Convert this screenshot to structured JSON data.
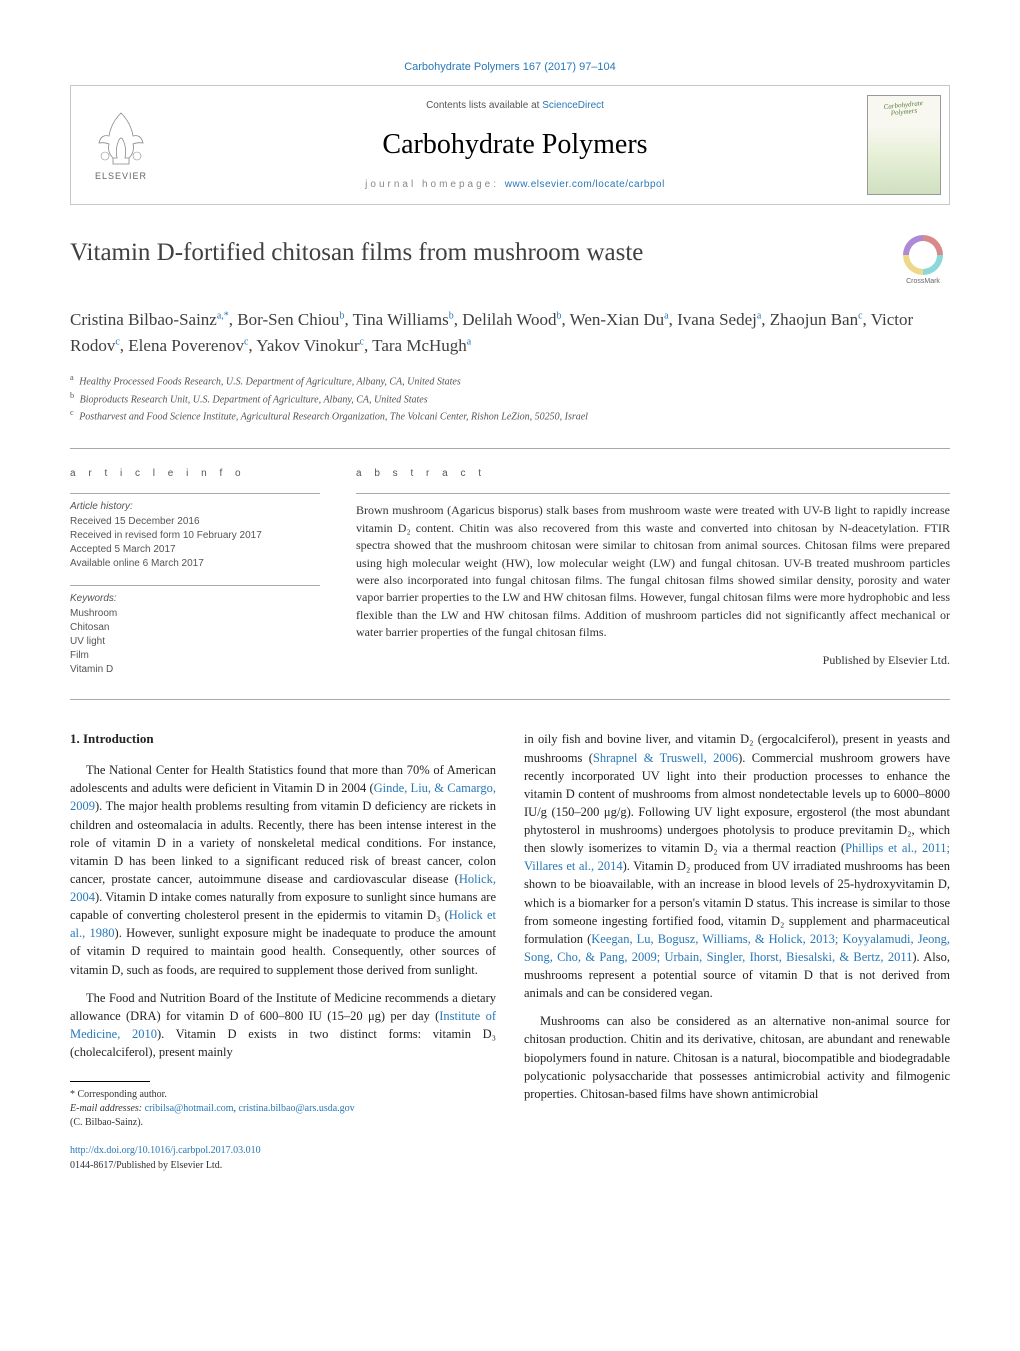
{
  "journal_ref": "Carbohydrate Polymers 167 (2017) 97–104",
  "header": {
    "contents_prefix": "Contents lists available at ",
    "contents_link": "ScienceDirect",
    "journal_name": "Carbohydrate Polymers",
    "homepage_prefix": "journal homepage: ",
    "homepage_url": "www.elsevier.com/locate/carbpol",
    "publisher_label": "ELSEVIER",
    "cover_title_1": "Carbohydrate",
    "cover_title_2": "Polymers"
  },
  "crossmark_label": "CrossMark",
  "title": "Vitamin D-fortified chitosan films from mushroom waste",
  "authors_html": "Cristina Bilbao-Sainz|a,*|, Bor-Sen Chiou|b|, Tina Williams|b|, Delilah Wood|b|, Wen-Xian Du|a|, Ivana Sedej|a|, Zhaojun Ban|c|, Victor Rodov|c|, Elena Poverenov|c|, Yakov Vinokur|c|, Tara McHugh|a|",
  "affiliations": [
    {
      "sup": "a",
      "text": "Healthy Processed Foods Research, U.S. Department of Agriculture, Albany, CA, United States"
    },
    {
      "sup": "b",
      "text": "Bioproducts Research Unit, U.S. Department of Agriculture, Albany, CA, United States"
    },
    {
      "sup": "c",
      "text": "Postharvest and Food Science Institute, Agricultural Research Organization, The Volcani Center, Rishon LeZion, 50250, Israel"
    }
  ],
  "article_info": {
    "label": "a r t i c l e   i n f o",
    "history_head": "Article history:",
    "history": [
      "Received 15 December 2016",
      "Received in revised form 10 February 2017",
      "Accepted 5 March 2017",
      "Available online 6 March 2017"
    ],
    "keywords_head": "Keywords:",
    "keywords": [
      "Mushroom",
      "Chitosan",
      "UV light",
      "Film",
      "Vitamin D"
    ]
  },
  "abstract": {
    "label": "a b s t r a c t",
    "text": "Brown mushroom (Agaricus bisporus) stalk bases from mushroom waste were treated with UV-B light to rapidly increase vitamin D₂ content. Chitin was also recovered from this waste and converted into chitosan by N-deacetylation. FTIR spectra showed that the mushroom chitosan were similar to chitosan from animal sources. Chitosan films were prepared using high molecular weight (HW), low molecular weight (LW) and fungal chitosan. UV-B treated mushroom particles were also incorporated into fungal chitosan films. The fungal chitosan films showed similar density, porosity and water vapor barrier properties to the LW and HW chitosan films. However, fungal chitosan films were more hydrophobic and less flexible than the LW and HW chitosan films. Addition of mushroom particles did not significantly affect mechanical or water barrier properties of the fungal chitosan films.",
    "publisher": "Published by Elsevier Ltd."
  },
  "body": {
    "section_heading": "1. Introduction",
    "col1_p1_a": "The National Center for Health Statistics found that more than 70% of American adolescents and adults were deficient in Vitamin D in 2004 (",
    "col1_p1_link1": "Ginde, Liu, & Camargo, 2009",
    "col1_p1_b": "). The major health problems resulting from vitamin D deficiency are rickets in children and osteomalacia in adults. Recently, there has been intense interest in the role of vitamin D in a variety of nonskeletal medical conditions. For instance, vitamin D has been linked to a significant reduced risk of breast cancer, colon cancer, prostate cancer, autoimmune disease and cardiovascular disease (",
    "col1_p1_link2": "Holick, 2004",
    "col1_p1_c": "). Vitamin D intake comes naturally from exposure to sunlight since humans are capable of converting cholesterol present in the epidermis to vitamin D₃ (",
    "col1_p1_link3": "Holick et al., 1980",
    "col1_p1_d": "). However, sunlight exposure might be inadequate to produce the amount of vitamin D required to maintain good health. Consequently, other sources of vitamin D, such as foods, are required to supplement those derived from sunlight.",
    "col1_p2_a": "The Food and Nutrition Board of the Institute of Medicine recommends a dietary allowance (DRA) for vitamin D of 600–800 IU (15–20 μg) per day (",
    "col1_p2_link1": "Institute of Medicine, 2010",
    "col1_p2_b": "). Vitamin D exists in two distinct forms: vitamin D₃ (cholecalciferol), present mainly",
    "col2_p1_a": "in oily fish and bovine liver, and vitamin D₂ (ergocalciferol), present in yeasts and mushrooms (",
    "col2_p1_link1": "Shrapnel & Truswell, 2006",
    "col2_p1_b": "). Commercial mushroom growers have recently incorporated UV light into their production processes to enhance the vitamin D content of mushrooms from almost nondetectable levels up to 6000–8000 IU/g (150–200 μg/g). Following UV light exposure, ergosterol (the most abundant phytosterol in mushrooms) undergoes photolysis to produce previtamin D₂, which then slowly isomerizes to vitamin D₂ via a thermal reaction (",
    "col2_p1_link2": "Phillips et al., 2011; Villares et al., 2014",
    "col2_p1_c": "). Vitamin D₂ produced from UV irradiated mushrooms has been shown to be bioavailable, with an increase in blood levels of 25-hydroxyvitamin D, which is a biomarker for a person's vitamin D status. This increase is similar to those from someone ingesting fortified food, vitamin D₂ supplement and pharmaceutical formulation (",
    "col2_p1_link3": "Keegan, Lu, Bogusz, Williams, & Holick, 2013; Koyyalamudi, Jeong, Song, Cho, & Pang, 2009; Urbain, Singler, Ihorst, Biesalski, & Bertz, 2011",
    "col2_p1_d": "). Also, mushrooms represent a potential source of vitamin D that is not derived from animals and can be considered vegan.",
    "col2_p2": "Mushrooms can also be considered as an alternative non-animal source for chitosan production. Chitin and its derivative, chitosan, are abundant and renewable biopolymers found in nature. Chitosan is a natural, biocompatible and biodegradable polycationic polysaccharide that possesses antimicrobial activity and filmogenic properties. Chitosan-based films have shown antimicrobial"
  },
  "footnotes": {
    "corresponding": "* Corresponding author.",
    "email_label": "E-mail addresses: ",
    "email1": "cribilsa@hotmail.com",
    "email_sep": ", ",
    "email2": "cristina.bilbao@ars.usda.gov",
    "author_paren": "(C. Bilbao-Sainz)."
  },
  "doi": {
    "url": "http://dx.doi.org/10.1016/j.carbpol.2017.03.010",
    "issn_line": "0144-8617/Published by Elsevier Ltd."
  },
  "colors": {
    "link": "#2878b8",
    "text": "#333333",
    "border": "#c8c8c8"
  }
}
